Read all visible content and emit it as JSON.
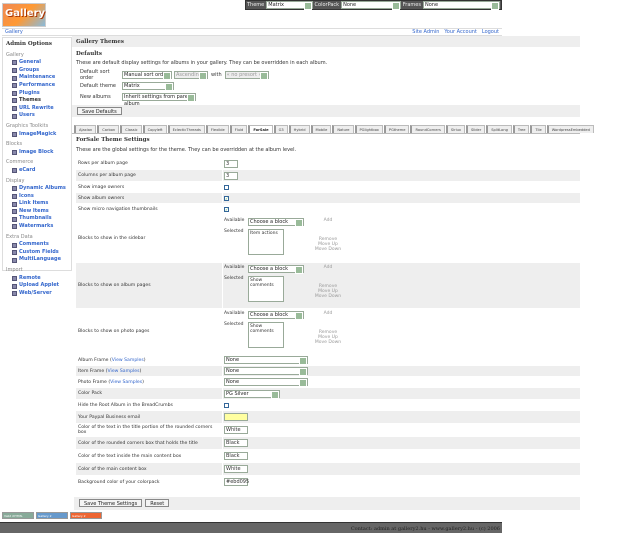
{
  "topbar": {
    "theme_label": "Theme",
    "theme_value": "Matrix",
    "colorpack_label": "ColorPack",
    "colorpack_value": "None",
    "frames_label": "Frames",
    "frames_value": "None"
  },
  "logo": {
    "text": "Gallery"
  },
  "breadcrumb": {
    "gallery": "Gallery",
    "site_admin": "Site Admin",
    "your_account": "Your Account",
    "logout": "Logout"
  },
  "sidebar": {
    "title": "Admin Options",
    "groups": [
      {
        "label": "Gallery",
        "items": [
          "General",
          "Groups",
          "Maintenance",
          "Performance",
          "Plugins",
          "Themes",
          "URL Rewrite",
          "Users"
        ]
      },
      {
        "label": "Graphics Toolkits",
        "items": [
          "ImageMagick"
        ]
      },
      {
        "label": "Blocks",
        "items": [
          "Image Block"
        ]
      },
      {
        "label": "Commerce",
        "items": [
          "eCard"
        ]
      },
      {
        "label": "Display",
        "items": [
          "Dynamic Albums",
          "Icons",
          "Link Items",
          "New Items",
          "Thumbnails",
          "Watermarks"
        ]
      },
      {
        "label": "Extra Data",
        "items": [
          "Comments",
          "Custom Fields",
          "MultiLanguage"
        ]
      },
      {
        "label": "Import",
        "items": [
          "Remote",
          "Upload Applet",
          "Web/Server"
        ]
      }
    ],
    "current": "Themes"
  },
  "main": {
    "header": "Gallery Themes",
    "defaults_title": "Defaults",
    "defaults_desc": "These are default display settings for albums in your gallery. They can be overridden in each album.",
    "sort_label": "Default sort order",
    "sort_value": "Manual sort order",
    "sort_dir": "Ascending",
    "with_label": "with",
    "presort": "« no presort »",
    "theme_label": "Default theme",
    "theme_value": "Matrix",
    "new_label": "New albums",
    "new_value": "Inherit settings from parent album",
    "save_defaults": "Save Defaults"
  },
  "tabs": [
    "Ajaxian",
    "Carbon",
    "Classic",
    "Copyleft",
    "EclecticThreads",
    "Flexible",
    "Fluid",
    "ForSale",
    "G3",
    "Hybrid",
    "Mobile",
    "Nature",
    "PGlightbox",
    "PGtheme",
    "RoundCorners",
    "Siriux",
    "Slider",
    "SplitLong",
    "Tree",
    "Tile",
    "WordpressEmbedded"
  ],
  "active_tab": "ForSale",
  "theme_settings": {
    "title": "ForSale Theme Settings",
    "desc": "These are the global settings for the theme. They can be overridden at the album level.",
    "rows_label": "Rows per album page",
    "rows_value": "3",
    "cols_label": "Columns per album page",
    "cols_value": "3",
    "image_owners_label": "Show image owners",
    "image_owners": false,
    "album_owners_label": "Show album owners",
    "album_owners": true,
    "micro_label": "Show micro navigation thumbnails",
    "micro": true,
    "blocks": [
      {
        "label": "Blocks to show in the sidebar",
        "selected": "Item actions"
      },
      {
        "label": "Blocks to show on album pages",
        "selected": "Show comments"
      },
      {
        "label": "Blocks to show on photo pages",
        "selected": "Show comments"
      }
    ],
    "available_label": "Available",
    "selected_label": "Selected",
    "choose": "Choose a block",
    "add": "Add",
    "remove": "Remove",
    "move_up": "Move Up",
    "move_down": "Move Down",
    "view_samples": "View Samples",
    "album_frame_label": "Album Frame",
    "album_frame": "None",
    "item_frame_label": "Item Frame",
    "item_frame": "None",
    "photo_frame_label": "Photo Frame",
    "photo_frame": "None",
    "color_pack_label": "Color Pack",
    "color_pack": "PG Silver",
    "hide_root_label": "Hide the Root Album in the BreadCrumbs",
    "hide_root": false,
    "paypal_label": "Your Paypal Business email",
    "paypal": "",
    "title_text_label": "Color of the text in the title portion of the rounded corners box",
    "title_text": "White",
    "rounded_label": "Color of the rounded corners box that holds the title",
    "rounded": "Black",
    "main_text_label": "Color of the text inside the main content box",
    "main_text": "Black",
    "main_box_label": "Color of the main content box",
    "main_box": "White",
    "bg_label": "Background color of your colorpack",
    "bg": "#ebd095",
    "save": "Save Theme Settings",
    "reset": "Reset"
  },
  "badges": [
    "Valid XHTML",
    "Gallery 2",
    "Gallery 2"
  ],
  "footer": "Contact: admin at gallery2.hu - www.gallery2.hu - (c) 2006"
}
